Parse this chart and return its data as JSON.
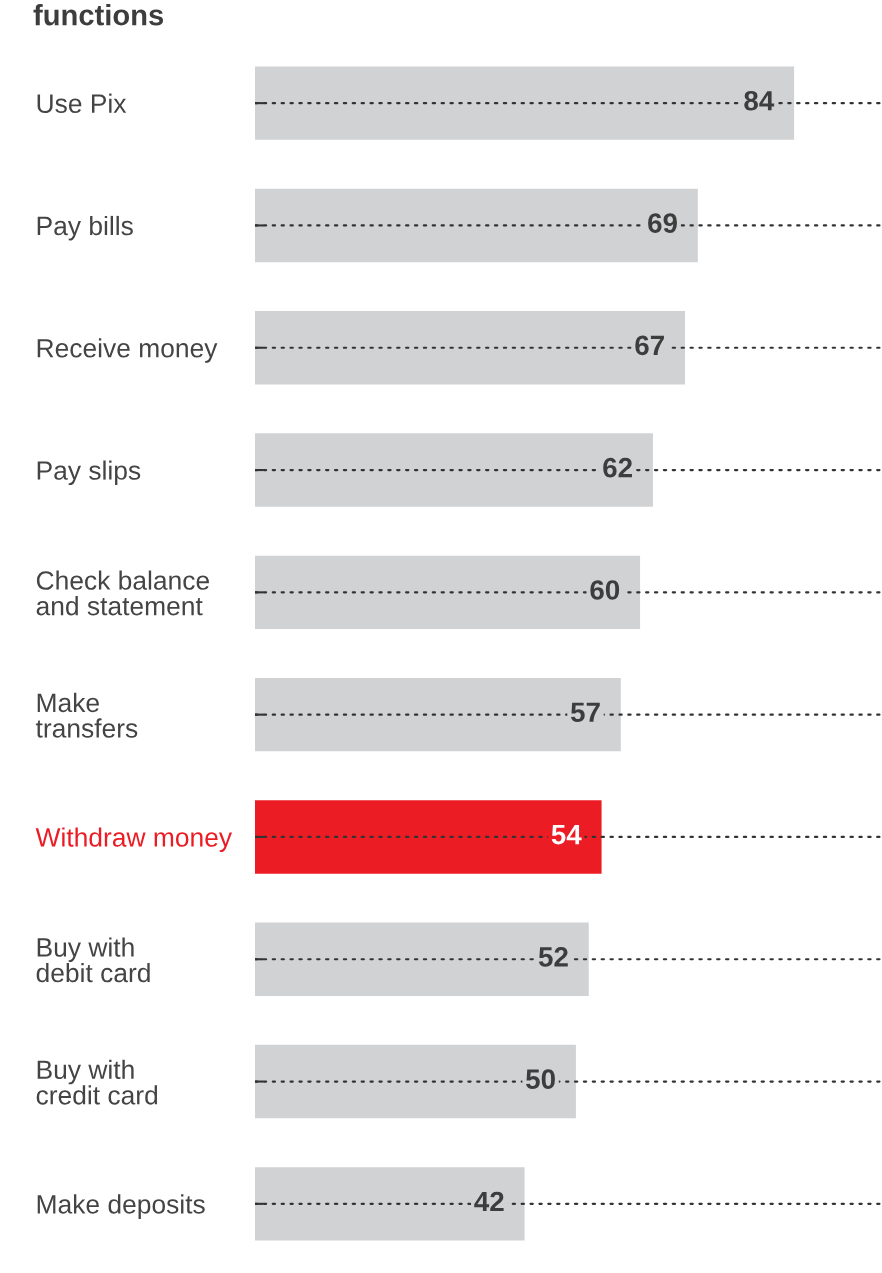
{
  "chart_data": {
    "type": "bar",
    "orientation": "horizontal",
    "title": "functions",
    "categories": [
      "Use Pix",
      "Pay bills",
      "Receive money",
      "Pay slips",
      "Check balance\nand statement",
      "Make\ntransfers",
      "Withdraw money",
      "Buy with\ndebit card",
      "Buy with\ncredit card",
      "Make deposits"
    ],
    "values": [
      84,
      69,
      67,
      62,
      60,
      57,
      54,
      52,
      50,
      42
    ],
    "colors": [
      "#d1d2d4",
      "#d1d2d4",
      "#d1d2d4",
      "#d1d2d4",
      "#d1d2d4",
      "#d1d2d4",
      "#ec1c24",
      "#d1d2d4",
      "#d1d2d4",
      "#d1d2d4"
    ],
    "data_labels": true,
    "grid": "y",
    "line_style": "dotted"
  }
}
